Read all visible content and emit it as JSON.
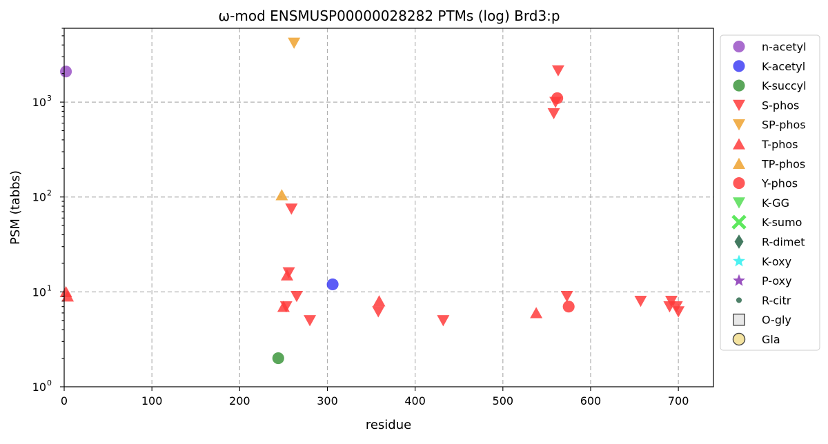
{
  "chart_data": {
    "type": "scatter",
    "title": "ω-mod ENSMUSP00000028282 PTMs (log) Brd3:p",
    "xlabel": "residue",
    "ylabel": "PSM (tabbs)",
    "xlim": [
      0,
      740
    ],
    "ylim": [
      1,
      6000
    ],
    "yscale": "log",
    "grid": true,
    "legend_position": "outside-right",
    "x_ticks": [
      {
        "value": 0,
        "label": "0"
      },
      {
        "value": 100,
        "label": "100"
      },
      {
        "value": 200,
        "label": "200"
      },
      {
        "value": 300,
        "label": "300"
      },
      {
        "value": 400,
        "label": "400"
      },
      {
        "value": 500,
        "label": "500"
      },
      {
        "value": 600,
        "label": "600"
      },
      {
        "value": 700,
        "label": "700"
      }
    ],
    "y_ticks": [
      {
        "value": 1,
        "base": "10",
        "exp": "0"
      },
      {
        "value": 10,
        "base": "10",
        "exp": "1"
      },
      {
        "value": 100,
        "base": "10",
        "exp": "2"
      },
      {
        "value": 1000,
        "base": "10",
        "exp": "3"
      }
    ],
    "series": [
      {
        "name": "n-acetyl",
        "marker": "circle",
        "color": "#9a52c6",
        "points": [
          [
            2,
            2100
          ]
        ]
      },
      {
        "name": "K-acetyl",
        "marker": "circle",
        "color": "#3f3ff5",
        "points": [
          [
            306,
            12
          ]
        ]
      },
      {
        "name": "K-succyl",
        "marker": "circle",
        "color": "#3d963d",
        "points": [
          [
            244,
            2
          ]
        ]
      },
      {
        "name": "S-phos",
        "marker": "triangle-down",
        "color": "#ff3b3b",
        "points": [
          [
            563,
            2150
          ],
          [
            560,
            1000
          ],
          [
            558,
            760
          ],
          [
            259,
            75
          ],
          [
            256,
            16
          ],
          [
            265,
            9
          ],
          [
            280,
            5
          ],
          [
            253,
            7
          ],
          [
            358,
            6.2
          ],
          [
            432,
            5
          ],
          [
            573,
            9
          ],
          [
            657,
            8
          ],
          [
            692,
            8
          ],
          [
            690,
            7
          ],
          [
            698,
            7
          ],
          [
            700,
            6.2
          ]
        ]
      },
      {
        "name": "SP-phos",
        "marker": "triangle-down",
        "color": "#eea22f",
        "points": [
          [
            262,
            4200
          ]
        ]
      },
      {
        "name": "T-phos",
        "marker": "triangle-up",
        "color": "#ff3b3b",
        "points": [
          [
            2,
            10
          ],
          [
            4,
            9
          ],
          [
            254,
            15
          ],
          [
            250,
            7
          ],
          [
            359,
            8
          ],
          [
            538,
            6
          ]
        ]
      },
      {
        "name": "TP-phos",
        "marker": "triangle-up",
        "color": "#eea22f",
        "points": [
          [
            248,
            105
          ]
        ]
      },
      {
        "name": "Y-phos",
        "marker": "circle",
        "color": "#ff3b3b",
        "points": [
          [
            562,
            1100
          ],
          [
            575,
            7
          ]
        ]
      },
      {
        "name": "K-GG",
        "marker": "triangle-down",
        "color": "#55dd55",
        "points": []
      },
      {
        "name": "K-sumo",
        "marker": "x",
        "color": "#5ee85e",
        "points": []
      },
      {
        "name": "R-dimet",
        "marker": "diamond",
        "color": "#2f6b4f",
        "points": []
      },
      {
        "name": "K-oxy",
        "marker": "star",
        "color": "#39f0f0",
        "points": []
      },
      {
        "name": "P-oxy",
        "marker": "star",
        "color": "#8e3fb8",
        "points": []
      },
      {
        "name": "R-citr",
        "marker": "small-circle",
        "color": "#2f6b4f",
        "points": []
      },
      {
        "name": "O-gly",
        "marker": "square",
        "color": "#e8e8e8",
        "points": []
      },
      {
        "name": "Gla",
        "marker": "circle-outline",
        "color": "#f4e3a0",
        "points": []
      }
    ]
  }
}
